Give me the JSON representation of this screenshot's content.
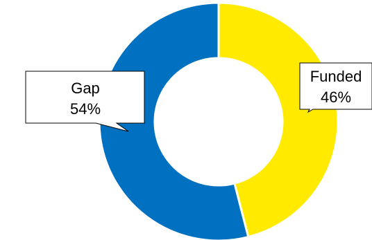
{
  "chart_data": {
    "type": "pie",
    "variant": "donut",
    "title": "",
    "slices": [
      {
        "label": "Funded",
        "value": 46,
        "value_label": "46%",
        "color": "#FFEA00"
      },
      {
        "label": "Gap",
        "value": 54,
        "value_label": "54%",
        "color": "#0070C0"
      }
    ],
    "start": "12 o'clock",
    "direction": "clockwise",
    "labels": "callouts",
    "legend": "none"
  }
}
